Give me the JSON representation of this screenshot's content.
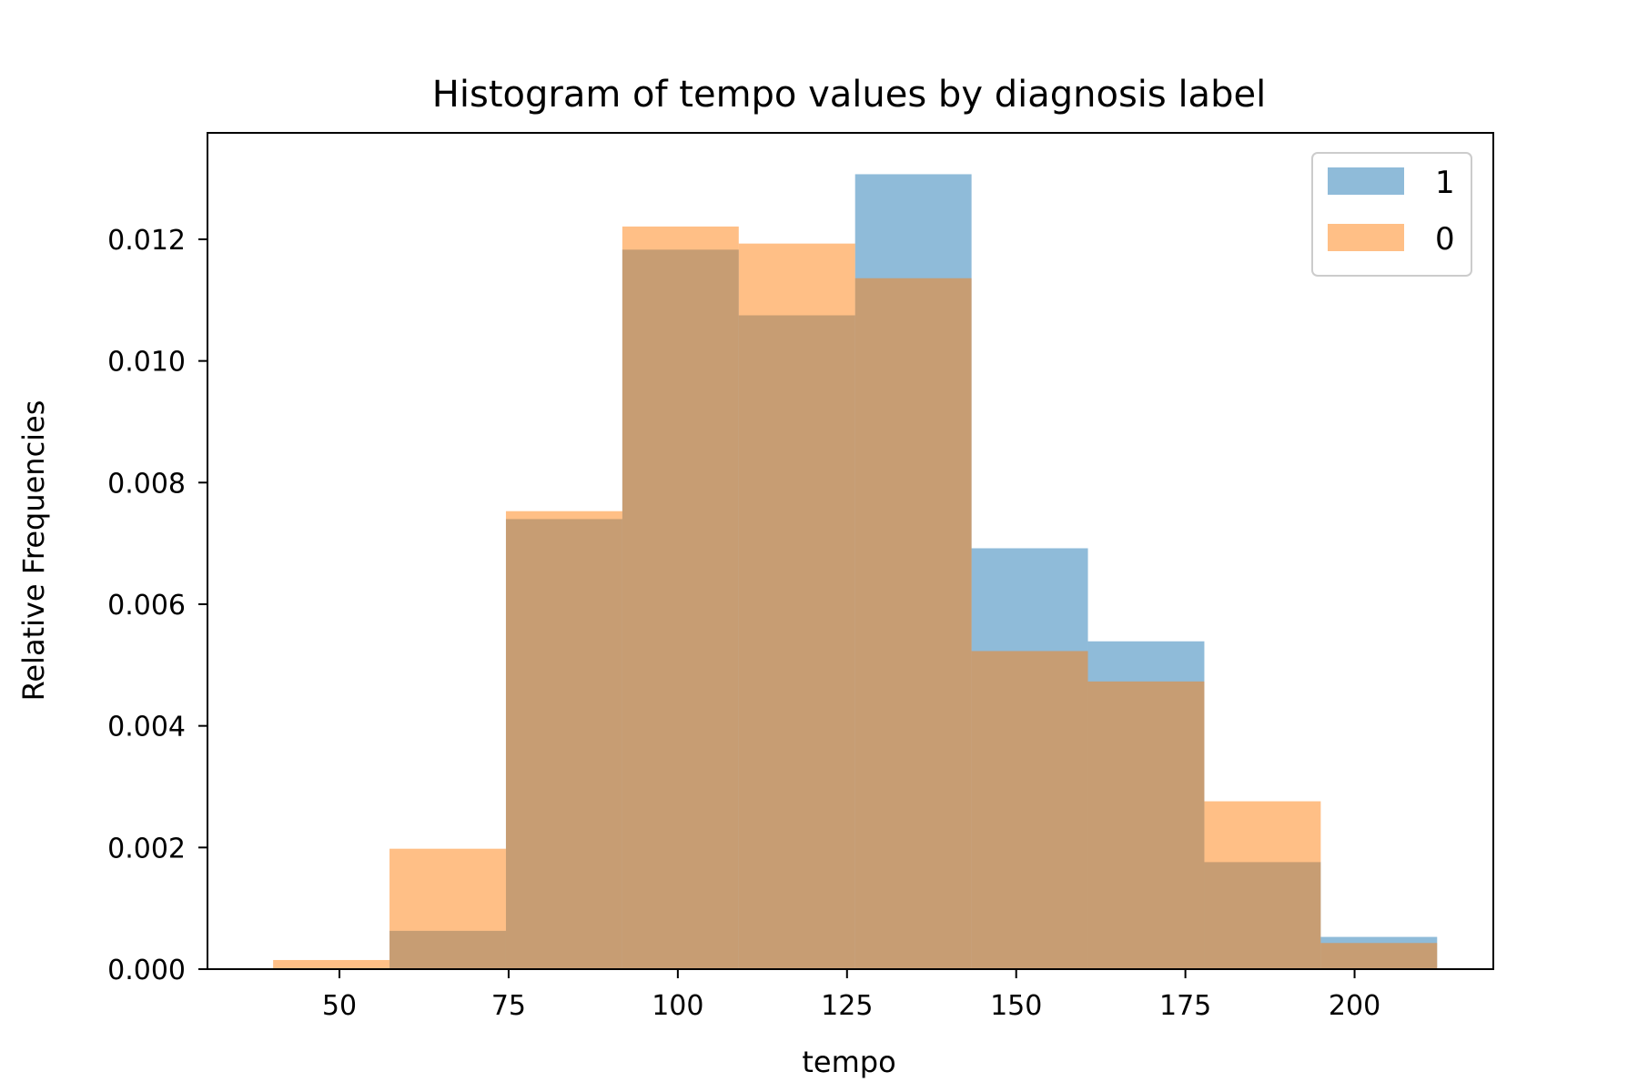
{
  "chart_data": {
    "type": "bar",
    "title": "Histogram of tempo values by diagnosis label",
    "xlabel": "tempo",
    "ylabel": "Relative Frequencies",
    "xlim": [
      30.5,
      220.5
    ],
    "ylim": [
      0,
      0.01375
    ],
    "xticks": [
      50,
      75,
      100,
      125,
      150,
      175,
      200
    ],
    "xtick_labels": [
      "50",
      "75",
      "100",
      "125",
      "150",
      "175",
      "200"
    ],
    "yticks": [
      0,
      0.002,
      0.004,
      0.006,
      0.008,
      0.01,
      0.012
    ],
    "ytick_labels": [
      "0.000",
      "0.002",
      "0.004",
      "0.006",
      "0.008",
      "0.010",
      "0.012"
    ],
    "grid": false,
    "legend_position": "top-right",
    "series": [
      {
        "name": "1",
        "color": "#1f77b4",
        "opacity": 0.5,
        "bin_edges": [
          57.4,
          74.6,
          91.8,
          109.0,
          126.2,
          143.4,
          160.6,
          177.8,
          195.0,
          212.2
        ],
        "values": [
          0.00063,
          0.0074,
          0.01183,
          0.01075,
          0.01307,
          0.00692,
          0.00539,
          0.00176,
          0.00053
        ]
      },
      {
        "name": "0",
        "color": "#ff7f0e",
        "opacity": 0.5,
        "bin_edges": [
          40.2,
          57.4,
          74.6,
          91.8,
          109.0,
          126.2,
          143.4,
          160.6,
          177.8,
          195.0,
          212.2
        ],
        "values": [
          0.00015,
          0.00198,
          0.00753,
          0.01221,
          0.01193,
          0.01136,
          0.00523,
          0.00473,
          0.00276,
          0.00043
        ]
      }
    ]
  }
}
